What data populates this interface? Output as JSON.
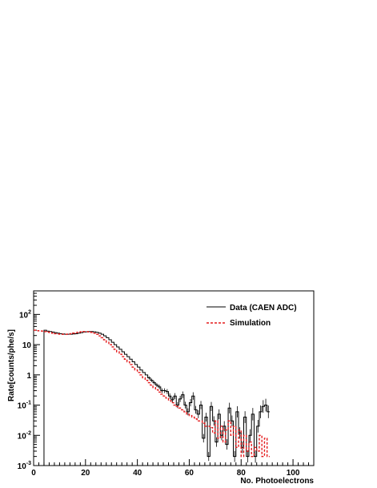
{
  "chart_data": {
    "type": "line",
    "xlabel": "No. Photoelectrons",
    "ylabel": "Rate[counts/phe/s]",
    "xlim": [
      0,
      108
    ],
    "ylim": [
      0.001,
      600
    ],
    "yscale": "log",
    "grid": false,
    "legend_position": "top-right",
    "x_ticks": [
      0,
      20,
      40,
      60,
      80,
      100
    ],
    "y_ticks": [
      {
        "value": 0.001,
        "base": "10",
        "exp": "-3"
      },
      {
        "value": 0.01,
        "base": "10",
        "exp": "-2"
      },
      {
        "value": 0.1,
        "base": "10",
        "exp": "-1"
      },
      {
        "value": 1,
        "base": "1",
        "exp": ""
      },
      {
        "value": 10,
        "base": "10",
        "exp": ""
      },
      {
        "value": 100,
        "base": "10",
        "exp": "2"
      }
    ],
    "series": [
      {
        "name": "Data (CAEN ADC)",
        "color": "#000000",
        "style": "solid-histogram",
        "x_start": 4,
        "bin_width": 1,
        "values": [
          30,
          28,
          27,
          26,
          25,
          24,
          23,
          22.5,
          22,
          22,
          22,
          22.5,
          23,
          24,
          25,
          26,
          26.5,
          27,
          27,
          26.5,
          25.5,
          24,
          22,
          19.5,
          17,
          14.5,
          12,
          10,
          8.4,
          7,
          5.8,
          4.8,
          4,
          3.3,
          2.7,
          2.2,
          1.8,
          1.45,
          1.2,
          1.0,
          0.8,
          0.66,
          0.55,
          0.46,
          0.4,
          0.3,
          0.3,
          0.28,
          0.2,
          0.15,
          0.2,
          0.1,
          0.16,
          0.22,
          0.1,
          0.06,
          0.12,
          0.2,
          0.07,
          0.05,
          0.1,
          0.008,
          0.04,
          0.002,
          0.09,
          0.03,
          0.006,
          0.05,
          0.01,
          0.02,
          0.005,
          0.08,
          0.03,
          0.002,
          0.06,
          0.012,
          0.004,
          0.04,
          0.002,
          0.01,
          0.05,
          0.002,
          0.02,
          0.06,
          0.09,
          0.1,
          0.06
        ]
      },
      {
        "name": "Simulation",
        "color": "#e41a1c",
        "style": "dashed-histogram",
        "x_start": 0,
        "bin_width": 1,
        "values": [
          30,
          29,
          28.5,
          28,
          27,
          26,
          25,
          24,
          23,
          22.5,
          22,
          22,
          22,
          22.5,
          23,
          24,
          25,
          26,
          26.5,
          27,
          27,
          26.5,
          25.5,
          24,
          22,
          19.5,
          17,
          14.5,
          12,
          10,
          8.4,
          7,
          5.8,
          4.8,
          4,
          3.3,
          2.7,
          2.2,
          1.8,
          1.45,
          1.2,
          1.0,
          0.8,
          0.66,
          0.55,
          0.46,
          0.38,
          0.32,
          0.27,
          0.23,
          0.2,
          0.17,
          0.14,
          0.12,
          0.1,
          0.09,
          0.08,
          0.07,
          0.06,
          0.05,
          0.045,
          0.04,
          0.035,
          0.03,
          0.03,
          0.025,
          0.02,
          0.02,
          0.018,
          0.012,
          0.03,
          0.008,
          0.02,
          0.006,
          0.015,
          0.03,
          0.01,
          0.02,
          0.004,
          0.015,
          0.002,
          0.01,
          0.003,
          0.006,
          0.002,
          0.004,
          0.003,
          0.01,
          0.002,
          0.008,
          0.002
        ]
      }
    ]
  }
}
